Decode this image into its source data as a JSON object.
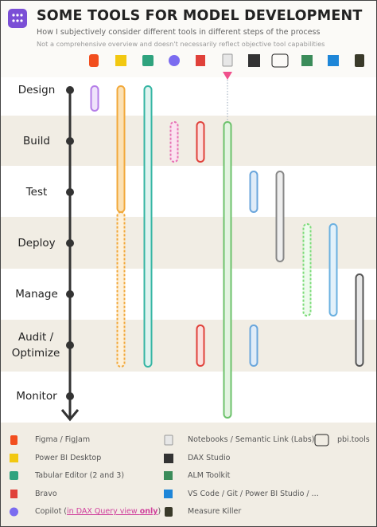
{
  "header": {
    "title": "SOME TOOLS FOR MODEL DEVELOPMENT",
    "subtitle": "How I subjectively consider different tools in different steps of the process",
    "note": "Not a comprehensive overview and doesn't necessarily reflect objective tool capabilities"
  },
  "stages": [
    "Design",
    "Build",
    "Test",
    "Deploy",
    "Manage",
    "Audit / Optimize",
    "Monitor"
  ],
  "legend": {
    "figma": "Figma / FigJam",
    "pbi_desktop": "Power BI Desktop",
    "tabular_editor": "Tabular Editor (2 and 3)",
    "bravo": "Bravo",
    "copilot": {
      "label": "Copilot (",
      "note": "in DAX Query view ",
      "emphasis": "only",
      "close": ")"
    },
    "notebooks": "Notebooks / Semantic Link (Labs)",
    "dax_studio": "DAX Studio",
    "alm_toolkit": "ALM Toolkit",
    "vs_code": "VS Code / Git / Power BI Studio / ...",
    "measure_killer": "Measure Killer",
    "pbi_tools": "pbi.tools"
  }
}
